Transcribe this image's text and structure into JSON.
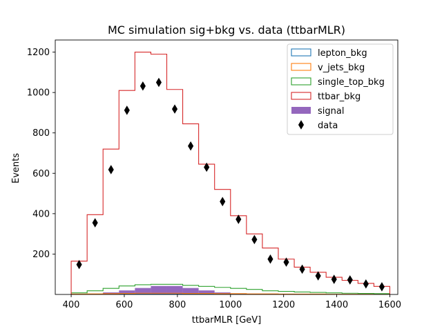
{
  "chart_data": {
    "type": "histogram",
    "title": "MC simulation sig+bkg vs. data (ttbarMLR)",
    "xlabel": "ttbarMLR [GeV]",
    "ylabel": "Events",
    "xlim": [
      340,
      1630
    ],
    "ylim": [
      0,
      1260
    ],
    "xticks": [
      400,
      600,
      800,
      1000,
      1200,
      1400,
      1600
    ],
    "yticks": [
      200,
      400,
      600,
      800,
      1000,
      1200
    ],
    "bin_edges": [
      400,
      460,
      520,
      580,
      640,
      700,
      760,
      820,
      880,
      940,
      1000,
      1060,
      1120,
      1180,
      1240,
      1300,
      1360,
      1420,
      1480,
      1540,
      1600
    ],
    "series": [
      {
        "name": "lepton_bkg",
        "color": "#1f77b4",
        "style": "step",
        "values": [
          0,
          0,
          0,
          1,
          1,
          1,
          1,
          1,
          1,
          1,
          1,
          0,
          0,
          0,
          0,
          0,
          0,
          0,
          0,
          0
        ]
      },
      {
        "name": "v_jets_bkg",
        "color": "#ff7f0e",
        "style": "step",
        "values": [
          2,
          3,
          4,
          5,
          6,
          6,
          6,
          5,
          5,
          4,
          4,
          3,
          3,
          2,
          2,
          2,
          1,
          1,
          1,
          1
        ]
      },
      {
        "name": "single_top_bkg",
        "color": "#2ca02c",
        "style": "step",
        "values": [
          8,
          18,
          30,
          42,
          48,
          50,
          50,
          45,
          40,
          35,
          30,
          25,
          18,
          15,
          12,
          10,
          8,
          6,
          5,
          4
        ]
      },
      {
        "name": "ttbar_bkg",
        "color": "#d62728",
        "style": "step",
        "values": [
          165,
          395,
          720,
          1010,
          1200,
          1190,
          1015,
          845,
          645,
          520,
          390,
          300,
          230,
          175,
          135,
          110,
          85,
          70,
          55,
          40
        ]
      },
      {
        "name": "signal",
        "color": "#9467bd",
        "style": "filled",
        "values": [
          0,
          3,
          10,
          20,
          32,
          42,
          42,
          32,
          20,
          10,
          4,
          2,
          0,
          0,
          0,
          0,
          0,
          0,
          0,
          0
        ]
      }
    ],
    "data_points": {
      "name": "data",
      "color": "#000000",
      "marker": "thin_diamond",
      "x": [
        430,
        490,
        550,
        610,
        670,
        730,
        790,
        850,
        910,
        970,
        1030,
        1090,
        1150,
        1210,
        1270,
        1330,
        1390,
        1450,
        1510,
        1570
      ],
      "y": [
        148,
        355,
        618,
        912,
        1032,
        1050,
        918,
        735,
        630,
        460,
        372,
        272,
        175,
        160,
        125,
        92,
        75,
        72,
        52,
        38
      ]
    },
    "legend": {
      "position": "upper right",
      "entries": [
        "lepton_bkg",
        "v_jets_bkg",
        "single_top_bkg",
        "ttbar_bkg",
        "signal",
        "data"
      ]
    }
  }
}
